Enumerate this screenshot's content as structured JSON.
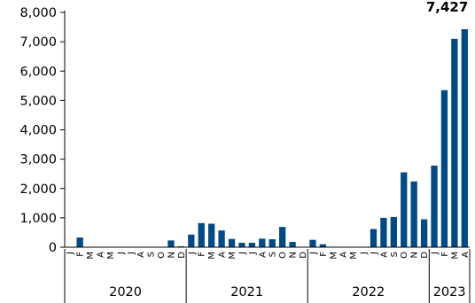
{
  "chart_data": {
    "type": "bar",
    "title": "",
    "xlabel": "",
    "ylabel": "",
    "ylim": [
      0,
      8000
    ],
    "yticks": [
      0,
      1000,
      2000,
      3000,
      4000,
      5000,
      6000,
      7000,
      8000
    ],
    "ytick_labels": [
      "0",
      "1,000",
      "2,000",
      "3,000",
      "4,000",
      "5,000",
      "6,000",
      "7,000",
      "8,000"
    ],
    "bar_color": "#004a87",
    "grid": false,
    "categories": [
      "J",
      "F",
      "M",
      "A",
      "M",
      "J",
      "J",
      "A",
      "S",
      "O",
      "N",
      "D",
      "J",
      "F",
      "M",
      "A",
      "M",
      "J",
      "J",
      "A",
      "S",
      "O",
      "N",
      "D",
      "J",
      "F",
      "M",
      "A",
      "M",
      "J",
      "J",
      "A",
      "S",
      "O",
      "N",
      "D",
      "J",
      "F",
      "M",
      "A"
    ],
    "groups": [
      {
        "label": "2020",
        "count": 12
      },
      {
        "label": "2021",
        "count": 12
      },
      {
        "label": "2022",
        "count": 12
      },
      {
        "label": "2023",
        "count": 4
      }
    ],
    "values": [
      0,
      330,
      0,
      0,
      0,
      0,
      0,
      0,
      0,
      0,
      230,
      30,
      430,
      820,
      800,
      570,
      280,
      150,
      150,
      290,
      270,
      690,
      180,
      0,
      250,
      100,
      0,
      0,
      0,
      0,
      620,
      1000,
      1030,
      2550,
      2240,
      950,
      2780,
      5350,
      7100,
      7427
    ],
    "annotations": [
      {
        "index": 39,
        "text": "7,427"
      }
    ]
  }
}
